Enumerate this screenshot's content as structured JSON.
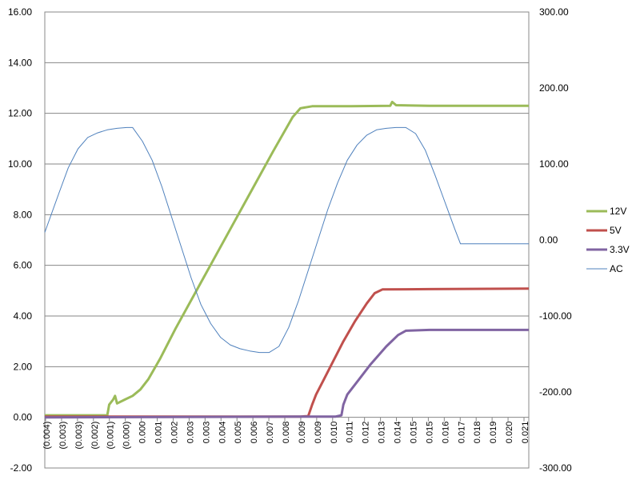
{
  "chart_data": {
    "type": "line",
    "title": "",
    "xlabel": "",
    "ylabel": "",
    "y_left": {
      "min": -2,
      "max": 16,
      "step": 2,
      "tick_labels": [
        "-2.00",
        "0.00",
        "2.00",
        "4.00",
        "6.00",
        "8.00",
        "10.00",
        "12.00",
        "14.00",
        "16.00"
      ]
    },
    "y_right": {
      "min": -300,
      "max": 300,
      "step": 100,
      "tick_labels": [
        "-300.00",
        "-200.00",
        "-100.00",
        "0.00",
        "100.00",
        "200.00",
        "300.00"
      ]
    },
    "x_tick_labels": [
      "(0.004)",
      "(0.003)",
      "(0.003)",
      "(0.002)",
      "(0.001)",
      "(0.000)",
      "0.000",
      "0.001",
      "0.002",
      "0.003",
      "0.003",
      "0.004",
      "0.005",
      "0.006",
      "0.007",
      "0.008",
      "0.009",
      "0.009",
      "0.010",
      "0.011",
      "0.012",
      "0.013",
      "0.014",
      "0.015",
      "0.015",
      "0.016",
      "0.017",
      "0.018",
      "0.019",
      "0.020",
      "0.021"
    ],
    "x": {
      "min": -0.0037,
      "max": 0.0211
    },
    "grid": true,
    "legend_position": "right",
    "series": [
      {
        "name": "12V",
        "color": "#9BBB59",
        "axis": "left",
        "width": 3,
        "points": [
          [
            -0.0037,
            0.08
          ],
          [
            -0.0005,
            0.08
          ],
          [
            -0.0004,
            0.5
          ],
          [
            -0.0002,
            0.7
          ],
          [
            -0.0001,
            0.85
          ],
          [
            0.0,
            0.55
          ],
          [
            0.0004,
            0.7
          ],
          [
            0.0008,
            0.85
          ],
          [
            0.0012,
            1.1
          ],
          [
            0.0016,
            1.5
          ],
          [
            0.0022,
            2.3
          ],
          [
            0.003,
            3.5
          ],
          [
            0.004,
            4.9
          ],
          [
            0.005,
            6.3
          ],
          [
            0.006,
            7.7
          ],
          [
            0.007,
            9.1
          ],
          [
            0.008,
            10.5
          ],
          [
            0.009,
            11.85
          ],
          [
            0.0094,
            12.2
          ],
          [
            0.01,
            12.28
          ],
          [
            0.012,
            12.28
          ],
          [
            0.014,
            12.3
          ],
          [
            0.0141,
            12.45
          ],
          [
            0.0143,
            12.32
          ],
          [
            0.016,
            12.3
          ],
          [
            0.018,
            12.3
          ],
          [
            0.0211,
            12.3
          ]
        ]
      },
      {
        "name": "5V",
        "color": "#C0504D",
        "axis": "left",
        "width": 3,
        "points": [
          [
            -0.0037,
            0.03
          ],
          [
            0.0094,
            0.03
          ],
          [
            0.0098,
            0.05
          ],
          [
            0.01,
            0.5
          ],
          [
            0.0102,
            0.9
          ],
          [
            0.0106,
            1.5
          ],
          [
            0.011,
            2.1
          ],
          [
            0.0116,
            3.0
          ],
          [
            0.0122,
            3.8
          ],
          [
            0.0128,
            4.5
          ],
          [
            0.0132,
            4.9
          ],
          [
            0.0136,
            5.05
          ],
          [
            0.016,
            5.06
          ],
          [
            0.0211,
            5.08
          ]
        ]
      },
      {
        "name": "3.3V",
        "color": "#8064A2",
        "axis": "left",
        "width": 3,
        "points": [
          [
            -0.0037,
            0.0
          ],
          [
            0.0112,
            0.03
          ],
          [
            0.0115,
            0.08
          ],
          [
            0.0116,
            0.5
          ],
          [
            0.0118,
            0.9
          ],
          [
            0.0124,
            1.5
          ],
          [
            0.013,
            2.1
          ],
          [
            0.0138,
            2.8
          ],
          [
            0.0144,
            3.25
          ],
          [
            0.0148,
            3.42
          ],
          [
            0.016,
            3.45
          ],
          [
            0.0211,
            3.45
          ]
        ]
      },
      {
        "name": "AC",
        "color": "#4F81BD",
        "axis": "right",
        "width": 1,
        "points": [
          [
            -0.0037,
            10
          ],
          [
            -0.003,
            60
          ],
          [
            -0.0025,
            95
          ],
          [
            -0.002,
            120
          ],
          [
            -0.0015,
            135
          ],
          [
            -0.001,
            141
          ],
          [
            -0.0005,
            145
          ],
          [
            0.0,
            147
          ],
          [
            0.0005,
            148
          ],
          [
            0.0008,
            148
          ],
          [
            0.0013,
            130
          ],
          [
            0.0018,
            105
          ],
          [
            0.0023,
            70
          ],
          [
            0.0028,
            30
          ],
          [
            0.0033,
            -10
          ],
          [
            0.0038,
            -50
          ],
          [
            0.0043,
            -85
          ],
          [
            0.0048,
            -110
          ],
          [
            0.0053,
            -128
          ],
          [
            0.0058,
            -138
          ],
          [
            0.0063,
            -143
          ],
          [
            0.0068,
            -146
          ],
          [
            0.0073,
            -148
          ],
          [
            0.0078,
            -148
          ],
          [
            0.0083,
            -140
          ],
          [
            0.0088,
            -115
          ],
          [
            0.0093,
            -80
          ],
          [
            0.0098,
            -40
          ],
          [
            0.0103,
            0
          ],
          [
            0.0108,
            40
          ],
          [
            0.0113,
            75
          ],
          [
            0.0118,
            105
          ],
          [
            0.0123,
            125
          ],
          [
            0.0128,
            138
          ],
          [
            0.0133,
            145
          ],
          [
            0.0138,
            147
          ],
          [
            0.0143,
            148
          ],
          [
            0.0148,
            148
          ],
          [
            0.0153,
            140
          ],
          [
            0.0158,
            118
          ],
          [
            0.0163,
            85
          ],
          [
            0.0168,
            50
          ],
          [
            0.0173,
            15
          ],
          [
            0.0176,
            -5
          ],
          [
            0.0211,
            -5
          ]
        ]
      }
    ]
  }
}
